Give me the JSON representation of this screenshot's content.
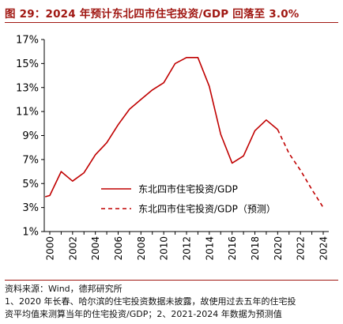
{
  "page": {
    "title": "图 29：2024 年预计东北四市住宅投资/GDP 回落至 3.0%",
    "source": "资料来源：Wind，德邦研究所",
    "note_line1": "1、2020 年长春、哈尔滨的住宅投资数据未披露，故使用过去五年的住宅投",
    "note_line2": "资平均值来测算当年的住宅投资/GDP；2、2021-2024 年数据为预测值"
  },
  "colors": {
    "accent": "#a01712",
    "line": "#c00000"
  },
  "chart_data": {
    "type": "line",
    "title": "",
    "xlabel": "",
    "ylabel": "",
    "ylim": [
      1,
      17
    ],
    "yticks": [
      "1%",
      "3%",
      "5%",
      "7%",
      "9%",
      "11%",
      "13%",
      "15%",
      "17%"
    ],
    "ytick_values": [
      1,
      3,
      5,
      7,
      9,
      11,
      13,
      15,
      17
    ],
    "xlim": [
      2000,
      2024
    ],
    "xticks": [
      "2000",
      "2002",
      "2004",
      "2006",
      "2008",
      "2010",
      "2012",
      "2014",
      "2016",
      "2018",
      "2020",
      "2022",
      "2024"
    ],
    "xtick_values": [
      2000,
      2002,
      2004,
      2006,
      2008,
      2010,
      2012,
      2014,
      2016,
      2018,
      2020,
      2022,
      2024
    ],
    "grid": false,
    "legend_position": "bottom-right",
    "series": [
      {
        "name": "东北四市住宅投资/GDP",
        "style": "solid",
        "x": [
          1999.6,
          2000,
          2001,
          2002,
          2003,
          2004,
          2005,
          2006,
          2007,
          2008,
          2009,
          2010,
          2011,
          2012,
          2013,
          2014,
          2015,
          2016,
          2017,
          2018,
          2019,
          2020
        ],
        "y": [
          3.9,
          4.0,
          6.0,
          5.2,
          5.9,
          7.4,
          8.4,
          9.9,
          11.2,
          12.0,
          12.8,
          13.4,
          15.0,
          15.5,
          15.5,
          13.1,
          9.1,
          6.7,
          7.3,
          9.4,
          10.3,
          9.5
        ]
      },
      {
        "name": "东北四市住宅投资/GDP（预测）",
        "style": "dashed",
        "x": [
          2020,
          2021,
          2022,
          2023,
          2024
        ],
        "y": [
          9.5,
          7.5,
          6.1,
          4.5,
          3.0
        ]
      }
    ]
  }
}
